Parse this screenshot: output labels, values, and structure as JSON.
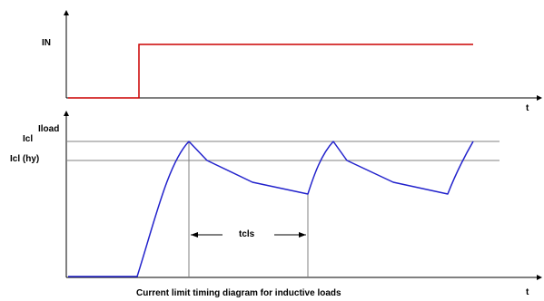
{
  "top_chart": {
    "signal_label": "IN",
    "time_label": "t"
  },
  "bottom_chart": {
    "y_label": "Iload",
    "icl_label": "Icl",
    "icl_hy_label": "Icl (hy)",
    "time_label": "t",
    "tcls_label": "tcls"
  },
  "caption": "Current limit timing diagram for inductive loads",
  "colors": {
    "input_signal": "#cc0000",
    "load_current": "#2222cc",
    "threshold_lines": "#808080",
    "axes": "#000000"
  }
}
